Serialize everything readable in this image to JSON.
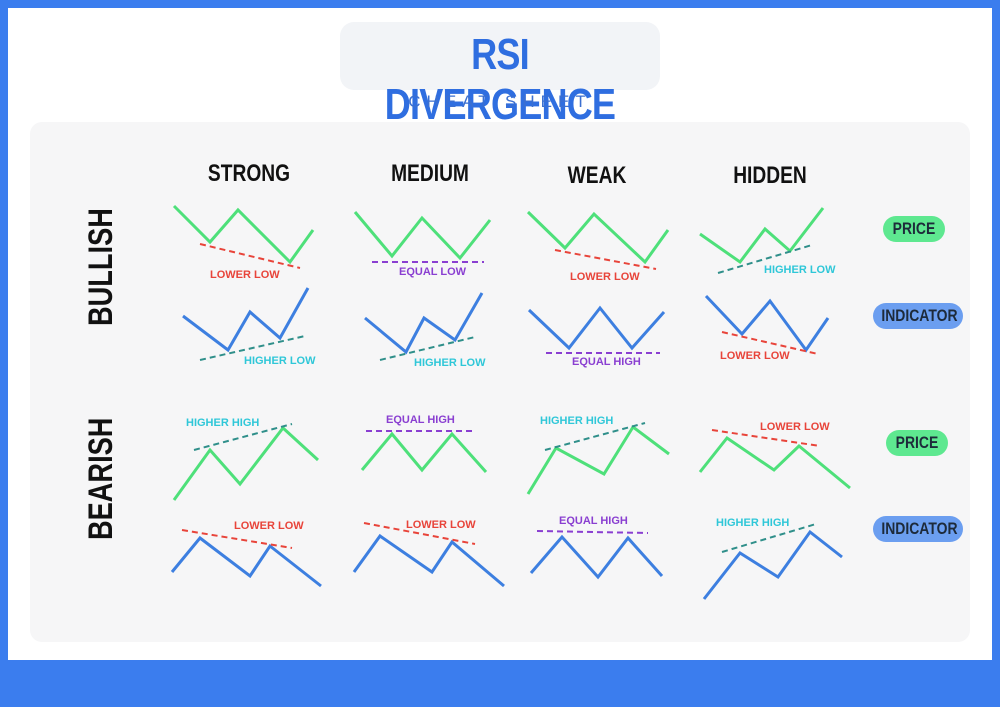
{
  "header": {
    "title": "RSI DIVERGENCE",
    "subtitle": "CHEAT SHEET"
  },
  "columns": [
    "STRONG",
    "MEDIUM",
    "WEAK",
    "HIDDEN"
  ],
  "rows": [
    "BULLISH",
    "BEARISH"
  ],
  "legend": {
    "price": "PRICE",
    "indicator": "INDICATOR"
  },
  "labels": {
    "bull_strong_price": "LOWER LOW",
    "bull_strong_ind": "HIGHER LOW",
    "bull_medium_price": "EQUAL LOW",
    "bull_medium_ind": "HIGHER LOW",
    "bull_weak_price": "LOWER LOW",
    "bull_weak_ind": "EQUAL HIGH",
    "bull_hidden_price": "HIGHER LOW",
    "bull_hidden_ind": "LOWER LOW",
    "bear_strong_price": "HIGHER HIGH",
    "bear_strong_ind": "LOWER LOW",
    "bear_medium_price": "EQUAL HIGH",
    "bear_medium_ind": "LOWER LOW",
    "bear_weak_price": "HIGHER HIGH",
    "bear_weak_ind": "EQUAL HIGH",
    "bear_hidden_price": "LOWER LOW",
    "bear_hidden_ind": "HIGHER HIGH"
  },
  "colors": {
    "background": "#3b7dee",
    "price_line": "#4ee07a",
    "indicator_line": "#3d7fe0",
    "red": "#e8443a",
    "purple": "#8a3fd1",
    "cyan": "#2fc7d8",
    "teal": "#2f8f8a",
    "price_pill": "#5ee890",
    "indicator_pill": "#6b9ef0"
  }
}
